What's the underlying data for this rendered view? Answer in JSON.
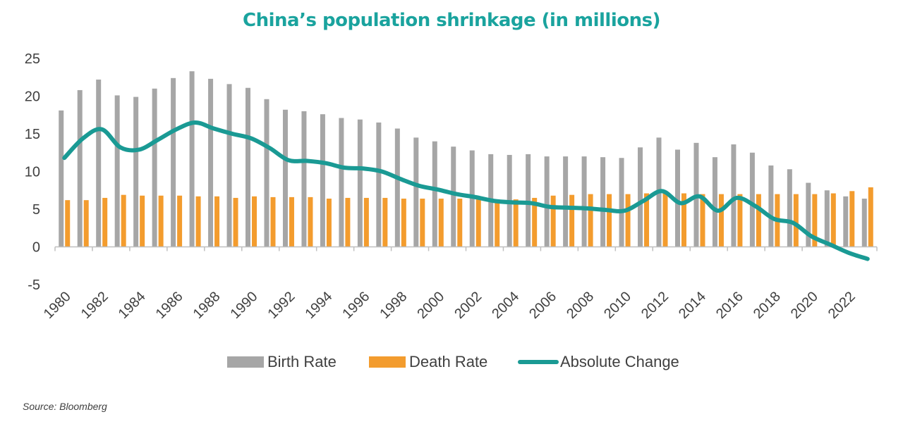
{
  "chart_data": {
    "type": "bar",
    "title": "China’s population shrinkage (in millions)",
    "categories": [
      1980,
      1981,
      1982,
      1983,
      1984,
      1985,
      1986,
      1987,
      1988,
      1989,
      1990,
      1991,
      1992,
      1993,
      1994,
      1995,
      1996,
      1997,
      1998,
      1999,
      2000,
      2001,
      2002,
      2003,
      2004,
      2005,
      2006,
      2007,
      2008,
      2009,
      2010,
      2011,
      2012,
      2013,
      2014,
      2015,
      2016,
      2017,
      2018,
      2019,
      2020,
      2021,
      2022,
      2023
    ],
    "x_tick_labels": [
      "1980",
      "1982",
      "1984",
      "1986",
      "1988",
      "1990",
      "1992",
      "1994",
      "1996",
      "1998",
      "2000",
      "2002",
      "2004",
      "2006",
      "2008",
      "2010",
      "2012",
      "2014",
      "2016",
      "2018",
      "2020",
      "2022"
    ],
    "series": [
      {
        "name": "Birth Rate",
        "type": "bar",
        "color": "#a6a6a6",
        "values": [
          18.1,
          20.8,
          22.2,
          20.1,
          19.9,
          21.0,
          22.4,
          23.3,
          22.3,
          21.6,
          21.1,
          19.6,
          18.2,
          18.0,
          17.6,
          17.1,
          16.9,
          16.5,
          15.7,
          14.5,
          14.0,
          13.3,
          12.8,
          12.3,
          12.2,
          12.3,
          12.0,
          12.0,
          12.0,
          11.9,
          11.8,
          13.2,
          14.5,
          12.9,
          13.8,
          11.9,
          13.6,
          12.5,
          10.8,
          10.3,
          8.5,
          7.5,
          6.7,
          6.4
        ]
      },
      {
        "name": "Death Rate",
        "type": "bar",
        "color": "#f39c2e",
        "values": [
          6.2,
          6.2,
          6.5,
          6.9,
          6.8,
          6.8,
          6.8,
          6.7,
          6.7,
          6.5,
          6.7,
          6.6,
          6.6,
          6.6,
          6.4,
          6.5,
          6.5,
          6.5,
          6.4,
          6.4,
          6.4,
          6.4,
          6.3,
          6.2,
          6.3,
          6.5,
          6.8,
          6.9,
          7.0,
          7.0,
          7.0,
          7.1,
          7.2,
          7.1,
          7.0,
          7.0,
          7.0,
          7.0,
          7.0,
          7.0,
          7.0,
          7.1,
          7.4,
          7.9
        ]
      },
      {
        "name": "Absolute Change",
        "type": "line",
        "color": "#1a9a94",
        "values": [
          11.8,
          14.4,
          15.6,
          13.2,
          12.9,
          14.2,
          15.6,
          16.5,
          15.7,
          15.0,
          14.4,
          13.1,
          11.5,
          11.4,
          11.1,
          10.5,
          10.4,
          10.0,
          9.0,
          8.1,
          7.6,
          7.0,
          6.6,
          6.1,
          5.9,
          5.8,
          5.3,
          5.2,
          5.1,
          4.9,
          4.8,
          6.1,
          7.4,
          5.8,
          6.7,
          4.8,
          6.5,
          5.4,
          3.7,
          3.2,
          1.4,
          0.3,
          -0.8,
          -1.6
        ]
      }
    ],
    "y_ticks": [
      25,
      20,
      15,
      10,
      5,
      0,
      -5
    ],
    "ylim": [
      -5,
      25
    ],
    "grid": false,
    "legend_position": "bottom",
    "title_color": "#1aa39e"
  },
  "legend": {
    "birth_label": "Birth Rate",
    "death_label": "Death Rate",
    "change_label": "Absolute Change"
  },
  "source": "Source: Bloomberg"
}
